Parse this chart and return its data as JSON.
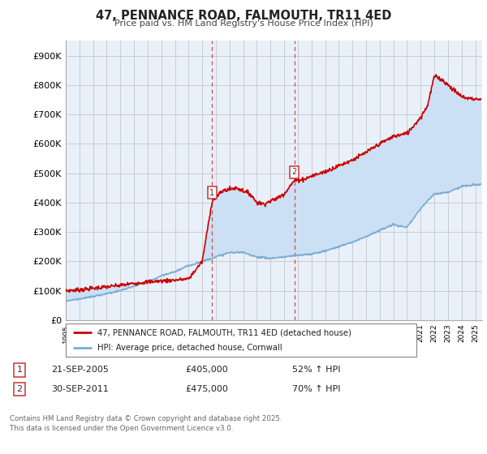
{
  "title": "47, PENNANCE ROAD, FALMOUTH, TR11 4ED",
  "subtitle": "Price paid vs. HM Land Registry's House Price Index (HPI)",
  "ylabel_ticks": [
    "£0",
    "£100K",
    "£200K",
    "£300K",
    "£400K",
    "£500K",
    "£600K",
    "£700K",
    "£800K",
    "£900K"
  ],
  "ytick_values": [
    0,
    100000,
    200000,
    300000,
    400000,
    500000,
    600000,
    700000,
    800000,
    900000
  ],
  "ylim": [
    0,
    950000
  ],
  "xlim_start": 1995.0,
  "xlim_end": 2025.5,
  "sale1": {
    "date_x": 2005.72,
    "price": 405000,
    "label": "1",
    "date_str": "21-SEP-2005",
    "pct": "52% ↑ HPI"
  },
  "sale2": {
    "date_x": 2011.75,
    "price": 475000,
    "label": "2",
    "date_str": "30-SEP-2011",
    "pct": "70% ↑ HPI"
  },
  "line_red_color": "#cc0000",
  "line_blue_color": "#7aadd4",
  "fill_color": "#cce0f5",
  "vline_color": "#cc3333",
  "grid_color": "#cccccc",
  "background_color": "#e8f0fa",
  "legend_label_red": "47, PENNANCE ROAD, FALMOUTH, TR11 4ED (detached house)",
  "legend_label_blue": "HPI: Average price, detached house, Cornwall",
  "footer": "Contains HM Land Registry data © Crown copyright and database right 2025.\nThis data is licensed under the Open Government Licence v3.0.",
  "table_row1": [
    "1",
    "21-SEP-2005",
    "£405,000",
    "52% ↑ HPI"
  ],
  "table_row2": [
    "2",
    "30-SEP-2011",
    "£475,000",
    "70% ↑ HPI"
  ],
  "xtick_years": [
    1995,
    1996,
    1997,
    1998,
    1999,
    2000,
    2001,
    2002,
    2003,
    2004,
    2005,
    2006,
    2007,
    2008,
    2009,
    2010,
    2011,
    2012,
    2013,
    2014,
    2015,
    2016,
    2017,
    2018,
    2019,
    2020,
    2021,
    2022,
    2023,
    2024,
    2025
  ]
}
